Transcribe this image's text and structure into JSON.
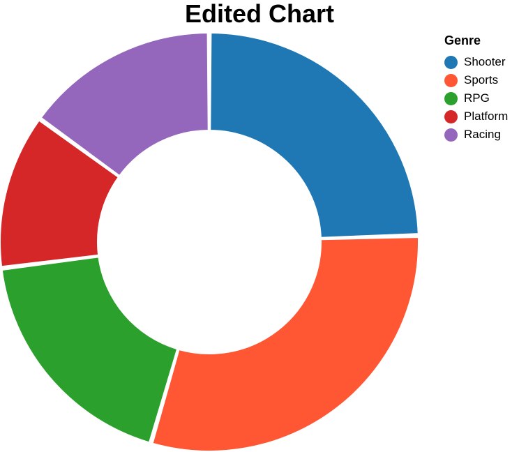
{
  "chart_data": {
    "type": "pie",
    "title": "Edited Chart",
    "legend": {
      "title": "Genre",
      "placement": "top-right"
    },
    "series": [
      {
        "name": "Shooter",
        "value": 24.5,
        "color": "#1f77b4"
      },
      {
        "name": "Sports",
        "value": 30.0,
        "color": "#ff5733"
      },
      {
        "name": "RPG",
        "value": 18.5,
        "color": "#2ca02c"
      },
      {
        "name": "Platform",
        "value": 12.0,
        "color": "#d62728"
      },
      {
        "name": "Racing",
        "value": 15.0,
        "color": "#9467bd"
      }
    ]
  }
}
